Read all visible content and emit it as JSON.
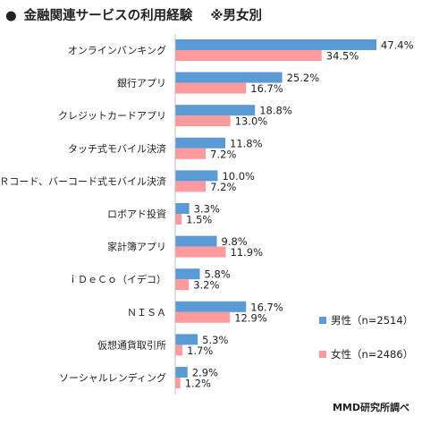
{
  "title": {
    "bullet": "●",
    "text": "金融関連サービスの利用経験",
    "note": "※男女別"
  },
  "source": "MMD研究所調べ",
  "colors": {
    "male": "#5b9bd5",
    "female": "#ff9a9e"
  },
  "chart_data": {
    "type": "bar",
    "orientation": "horizontal",
    "categories": [
      "オンラインバンキング",
      "銀行アプリ",
      "クレジットカードアプリ",
      "タッチ式モバイル決済",
      "ＱＲコード、バーコード式モバイル決済",
      "ロボアド投資",
      "家計簿アプリ",
      "ｉＤｅＣｏ（イデコ）",
      "ＮＩＳＡ",
      "仮想通貨取引所",
      "ソーシャルレンディング"
    ],
    "series": [
      {
        "name": "男性（n=2514）",
        "values": [
          47.4,
          25.2,
          18.8,
          11.8,
          10.0,
          3.3,
          9.8,
          5.8,
          16.7,
          5.3,
          2.9
        ]
      },
      {
        "name": "女性（n=2486）",
        "values": [
          34.5,
          16.7,
          13.0,
          7.2,
          7.2,
          1.5,
          11.9,
          3.2,
          12.9,
          1.7,
          1.2
        ]
      }
    ],
    "value_labels": {
      "male": [
        "47.4%",
        "25.2%",
        "18.8%",
        "11.8%",
        "10.0%",
        "3.3%",
        "9.8%",
        "5.8%",
        "16.7%",
        "5.3%",
        "2.9%"
      ],
      "female": [
        "34.5%",
        "16.7%",
        "13.0%",
        "7.2%",
        "7.2%",
        "1.5%",
        "11.9%",
        "3.2%",
        "12.9%",
        "1.7%",
        "1.2%"
      ]
    },
    "xlim": [
      0,
      47.4
    ],
    "legend_position": "bottom-right"
  }
}
